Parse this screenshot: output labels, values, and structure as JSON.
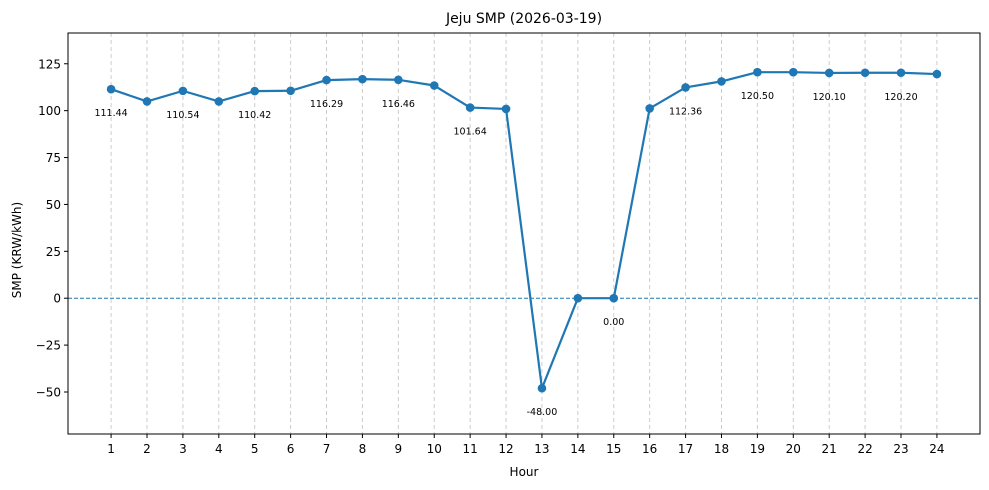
{
  "chart_data": {
    "type": "line",
    "title": "Jeju SMP (2026-03-19)",
    "xlabel": "Hour",
    "ylabel": "SMP (KRW/kWh)",
    "x": [
      1,
      2,
      3,
      4,
      5,
      6,
      7,
      8,
      9,
      10,
      11,
      12,
      13,
      14,
      15,
      16,
      17,
      18,
      19,
      20,
      21,
      22,
      23,
      24
    ],
    "series": [
      {
        "values": [
          111.44,
          104.9,
          110.54,
          104.9,
          110.42,
          110.6,
          116.29,
          116.8,
          116.46,
          113.4,
          101.64,
          100.9,
          -48.0,
          0.0,
          0.0,
          101.2,
          112.36,
          115.6,
          120.5,
          120.5,
          120.1,
          120.2,
          120.2,
          119.5
        ]
      }
    ],
    "data_labels": [
      {
        "x": 1,
        "y": 111.44,
        "text": "111.44"
      },
      {
        "x": 3,
        "y": 110.54,
        "text": "110.54"
      },
      {
        "x": 5,
        "y": 110.42,
        "text": "110.42"
      },
      {
        "x": 7,
        "y": 116.29,
        "text": "116.29"
      },
      {
        "x": 9,
        "y": 116.46,
        "text": "116.46"
      },
      {
        "x": 11,
        "y": 101.64,
        "text": "101.64"
      },
      {
        "x": 13,
        "y": -48.0,
        "text": "-48.00"
      },
      {
        "x": 15,
        "y": 0.0,
        "text": "0.00"
      },
      {
        "x": 17,
        "y": 112.36,
        "text": "112.36"
      },
      {
        "x": 19,
        "y": 120.5,
        "text": "120.50"
      },
      {
        "x": 21,
        "y": 120.1,
        "text": "120.10"
      },
      {
        "x": 23,
        "y": 120.2,
        "text": "120.20"
      }
    ],
    "xticks": [
      "1",
      "2",
      "3",
      "4",
      "5",
      "6",
      "7",
      "8",
      "9",
      "10",
      "11",
      "12",
      "13",
      "14",
      "15",
      "16",
      "17",
      "18",
      "19",
      "20",
      "21",
      "22",
      "23",
      "24"
    ],
    "yticks": [
      -50,
      -25,
      0,
      25,
      50,
      75,
      100,
      125
    ],
    "ytick_labels": [
      "−50",
      "−25",
      "0",
      "25",
      "50",
      "75",
      "100",
      "125"
    ],
    "xlim": [
      -0.2,
      25.2
    ],
    "ylim": [
      -72.4,
      141.4
    ],
    "zero_line": true,
    "grid": "vertical dashed",
    "line_color": "#1f77b4"
  }
}
